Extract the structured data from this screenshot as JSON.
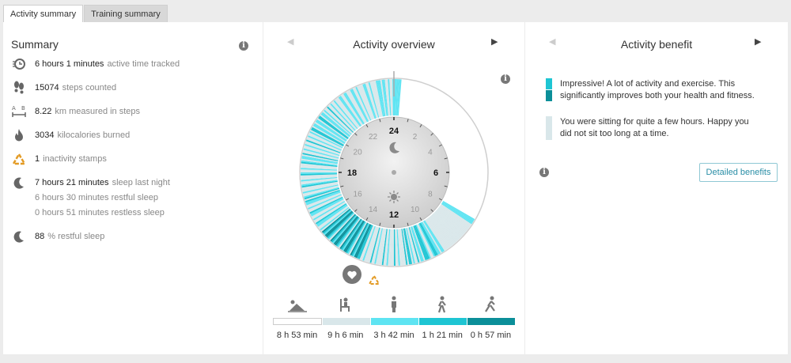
{
  "tabs": [
    {
      "label": "Activity summary",
      "active": true
    },
    {
      "label": "Training summary",
      "active": false
    }
  ],
  "summary": {
    "title": "Summary",
    "items": [
      {
        "icon": "activity-clock-icon",
        "value": "6 hours 1 minutes",
        "label": "active time tracked"
      },
      {
        "icon": "footsteps-icon",
        "value": "15074",
        "label": "steps counted"
      },
      {
        "icon": "distance-ab-icon",
        "value": "8.22",
        "label": "km measured in steps"
      },
      {
        "icon": "flame-icon",
        "value": "3034",
        "label": "kilocalories burned"
      },
      {
        "icon": "inactivity-stamp-icon",
        "value": "1",
        "label": "inactivity stamps"
      },
      {
        "icon": "moon-icon",
        "value": "7 hours 21 minutes",
        "label": "sleep last night"
      },
      {
        "icon": "moon-icon",
        "value": "88",
        "label": "% restful sleep"
      }
    ],
    "sleep_details": [
      {
        "value": "6 hours 30 minutes",
        "label": "restful sleep"
      },
      {
        "value": "0 hours 51 minutes",
        "label": "restless sleep"
      }
    ]
  },
  "overview": {
    "title": "Activity overview",
    "hour_labels": [
      "24",
      "2",
      "4",
      "6",
      "8",
      "10",
      "12",
      "14",
      "16",
      "18",
      "20",
      "22"
    ],
    "durations": [
      "8 h 53 min",
      "9 h 6 min",
      "3 h 42 min",
      "1 h 21 min",
      "0 h 57 min"
    ],
    "posture_icons": [
      "lying-icon",
      "sitting-icon",
      "standing-icon",
      "walking-icon",
      "running-icon"
    ],
    "colors": [
      "#ffffff",
      "#d9e7ea",
      "#5ee4f2",
      "#1ec5d3",
      "#0b8f99"
    ]
  },
  "benefit": {
    "title": "Activity benefit",
    "messages": [
      {
        "text1": "Impressive! A lot of activity and exercise. This",
        "text2": "significantly improves both your health and fitness."
      },
      {
        "text1": "You were sitting for quite a few hours. Happy you",
        "text2": "did not sit too long at a time."
      }
    ],
    "button": "Detailed benefits",
    "colors": {
      "light": "#1ec5d3",
      "dark": "#0b8f99",
      "pale": "#d9e7ea"
    }
  }
}
